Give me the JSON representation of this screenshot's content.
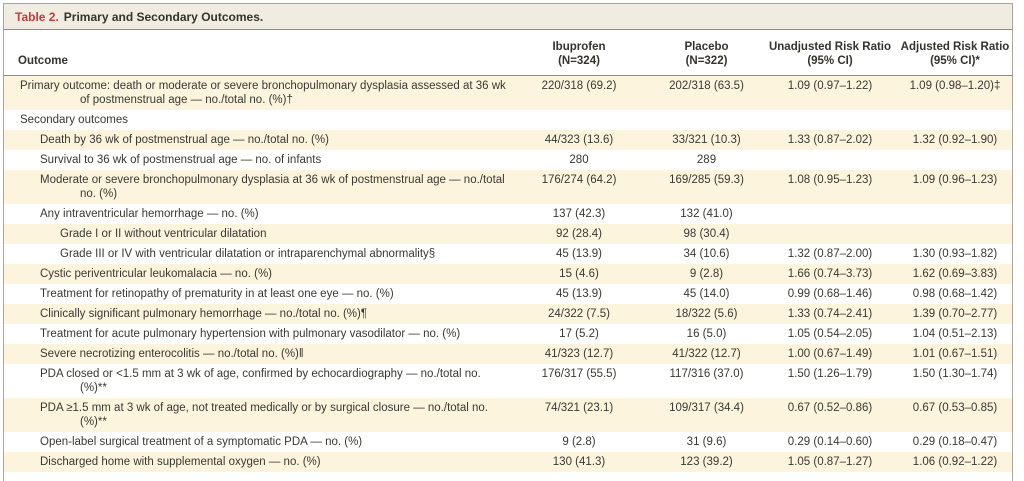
{
  "title": {
    "prefix": "Table 2.",
    "text": "Primary and Secondary Outcomes."
  },
  "columns": {
    "outcome": "Outcome",
    "ibuprofen": {
      "line1": "Ibuprofen",
      "line2": "(N=324)"
    },
    "placebo": {
      "line1": "Placebo",
      "line2": "(N=322)"
    },
    "unadjusted": {
      "line1": "Unadjusted Risk Ratio",
      "line2": "(95% CI)"
    },
    "adjusted": {
      "line1": "Adjusted Risk Ratio",
      "line2": "(95% CI)*"
    }
  },
  "rows": [
    {
      "outcome": "Primary outcome: death or moderate or severe bronchopulmonary dysplasia assessed at 36 wk of postmenstrual age — no./total no. (%)†",
      "indent": 0,
      "shaded": true,
      "values": [
        "220/318 (69.2)",
        "202/318 (63.5)",
        "1.09 (0.97–1.22)",
        "1.09 (0.98–1.20)‡"
      ]
    },
    {
      "outcome": "Secondary outcomes",
      "indent": 0,
      "shaded": false,
      "values": [
        "",
        "",
        "",
        ""
      ]
    },
    {
      "outcome": "Death by 36 wk of postmenstrual age — no./total no. (%)",
      "indent": 1,
      "shaded": true,
      "values": [
        "44/323 (13.6)",
        "33/321 (10.3)",
        "1.33 (0.87–2.02)",
        "1.32 (0.92–1.90)"
      ]
    },
    {
      "outcome": "Survival to 36 wk of postmenstrual age — no. of infants",
      "indent": 1,
      "shaded": false,
      "values": [
        "280",
        "289",
        "",
        ""
      ]
    },
    {
      "outcome": "Moderate or severe bronchopulmonary dysplasia at 36 wk of postmenstrual age — no./total no. (%)",
      "indent": 1,
      "shaded": true,
      "values": [
        "176/274 (64.2)",
        "169/285 (59.3)",
        "1.08 (0.95–1.23)",
        "1.09 (0.96–1.23)"
      ]
    },
    {
      "outcome": "Any intraventricular hemorrhage — no. (%)",
      "indent": 1,
      "shaded": false,
      "values": [
        "137 (42.3)",
        "132 (41.0)",
        "",
        ""
      ]
    },
    {
      "outcome": "Grade I or II without ventricular dilatation",
      "indent": 2,
      "shaded": true,
      "values": [
        "92 (28.4)",
        "98 (30.4)",
        "",
        ""
      ]
    },
    {
      "outcome": "Grade III or IV with ventricular dilatation or intraparenchymal abnormality§",
      "indent": 2,
      "shaded": false,
      "values": [
        "45 (13.9)",
        "34 (10.6)",
        "1.32 (0.87–2.00)",
        "1.30 (0.93–1.82)"
      ]
    },
    {
      "outcome": "Cystic periventricular leukomalacia — no. (%)",
      "indent": 1,
      "shaded": true,
      "values": [
        "15 (4.6)",
        "9 (2.8)",
        "1.66 (0.74–3.73)",
        "1.62 (0.69–3.83)"
      ]
    },
    {
      "outcome": "Treatment for retinopathy of prematurity in at least one eye — no. (%)",
      "indent": 1,
      "shaded": false,
      "values": [
        "45 (13.9)",
        "45 (14.0)",
        "0.99 (0.68–1.46)",
        "0.98 (0.68–1.42)"
      ]
    },
    {
      "outcome": "Clinically significant pulmonary hemorrhage — no./total no. (%)¶",
      "indent": 1,
      "shaded": true,
      "values": [
        "24/322 (7.5)",
        "18/322 (5.6)",
        "1.33 (0.74–2.41)",
        "1.39 (0.70–2.77)"
      ]
    },
    {
      "outcome": "Treatment for acute pulmonary hypertension with pulmonary vasodilator — no. (%)",
      "indent": 1,
      "shaded": false,
      "values": [
        "17 (5.2)",
        "16 (5.0)",
        "1.05 (0.54–2.05)",
        "1.04 (0.51–2.13)"
      ]
    },
    {
      "outcome": "Severe necrotizing enterocolitis — no./total no. (%)‖",
      "indent": 1,
      "shaded": true,
      "values": [
        "41/323 (12.7)",
        "41/322 (12.7)",
        "1.00 (0.67–1.49)",
        "1.01 (0.67–1.51)"
      ]
    },
    {
      "outcome": "PDA closed or <1.5 mm at 3 wk of age, confirmed by echocardiography — no./total no. (%)**",
      "indent": 1,
      "shaded": false,
      "values": [
        "176/317 (55.5)",
        "117/316 (37.0)",
        "1.50 (1.26–1.79)",
        "1.50 (1.30–1.74)"
      ]
    },
    {
      "outcome": "PDA ≥1.5 mm at 3 wk of age, not treated medically or by surgical closure — no./total no. (%)**",
      "indent": 1,
      "shaded": true,
      "values": [
        "74/321 (23.1)",
        "109/317 (34.4)",
        "0.67 (0.52–0.86)",
        "0.67 (0.53–0.85)"
      ]
    },
    {
      "outcome": "Open-label surgical treatment of a symptomatic PDA — no. (%)",
      "indent": 1,
      "shaded": false,
      "values": [
        "9 (2.8)",
        "31 (9.6)",
        "0.29 (0.14–0.60)",
        "0.29 (0.18–0.47)"
      ]
    },
    {
      "outcome": "Discharged home with supplemental oxygen — no. (%)",
      "indent": 1,
      "shaded": true,
      "values": [
        "130 (41.3)",
        "123 (39.2)",
        "1.05 (0.87–1.27)",
        "1.06 (0.92–1.22)"
      ]
    }
  ],
  "colors": {
    "accent_red": "#c23b40",
    "stripe": "#fcf4dd",
    "title_band": "#f0ece1",
    "rule": "#8f8b82",
    "text": "#3a3831"
  }
}
